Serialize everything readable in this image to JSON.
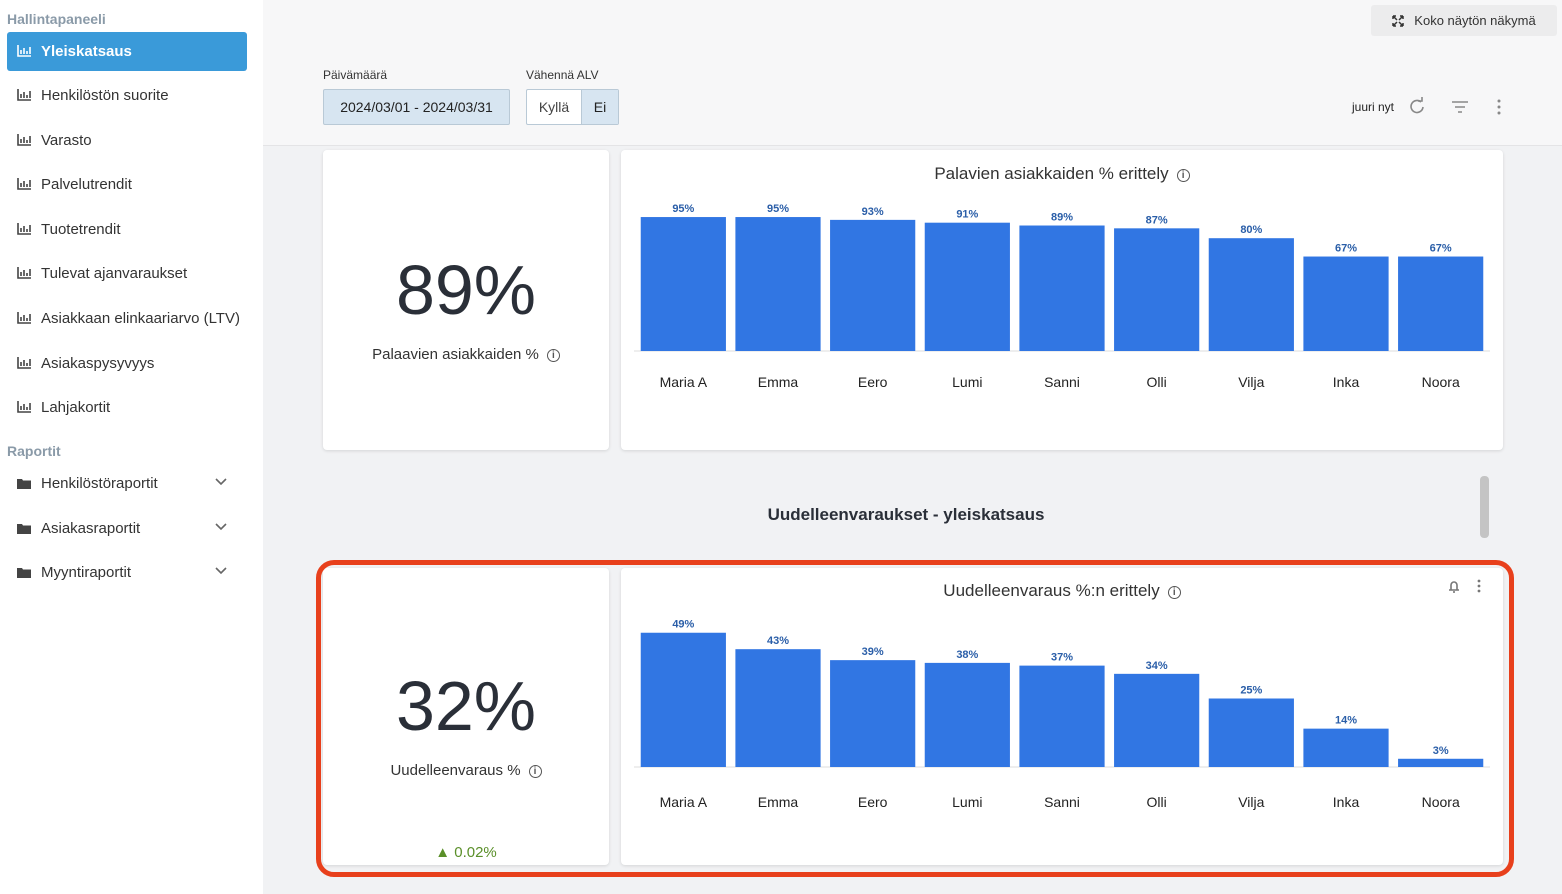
{
  "sidebar": {
    "heading": "Hallintapaneeli",
    "items": [
      "Yleiskatsaus",
      "Henkilöstön suorite",
      "Varasto",
      "Palvelutrendit",
      "Tuotetrendit",
      "Tulevat ajanvaraukset",
      "Asiakkaan elinkaariarvo (LTV)",
      "Asiakaspysyvyys",
      "Lahjakortit"
    ],
    "reports_heading": "Raportit",
    "reports": [
      "Henkilöstöraportit",
      "Asiakasraportit",
      "Myyntiraportit"
    ]
  },
  "toolbar": {
    "fullscreen": "Koko näytön näkymä",
    "date_label": "Päivämäärä",
    "date_value": "2024/03/01 - 2024/03/31",
    "vat_label": "Vähennä ALV",
    "vat_options": [
      "Kyllä",
      "Ei"
    ],
    "updated": "juuri nyt"
  },
  "kpi1": {
    "value": "89%",
    "label": "Palaavien asiakkaiden %"
  },
  "chart1": {
    "type": "bar",
    "title": "Palavien asiakkaiden % erittely",
    "categories": [
      "Maria A",
      "Emma",
      "Eero",
      "Lumi",
      "Sanni",
      "Olli",
      "Vilja",
      "Inka",
      "Noora"
    ],
    "values": [
      95,
      95,
      93,
      91,
      89,
      87,
      80,
      67,
      67
    ],
    "value_labels": [
      "95%",
      "95%",
      "93%",
      "91%",
      "89%",
      "87%",
      "80%",
      "67%",
      "67%"
    ],
    "color": "#3176e3",
    "ylim": [
      0,
      100
    ]
  },
  "section_title": "Uudelleenvaraukset - yleiskatsaus",
  "kpi2": {
    "value": "32%",
    "label": "Uudelleenvaraus %",
    "change": "▲ 0.02%"
  },
  "chart2": {
    "type": "bar",
    "title": "Uudelleenvaraus %:n erittely",
    "categories": [
      "Maria A",
      "Emma",
      "Eero",
      "Lumi",
      "Sanni",
      "Olli",
      "Vilja",
      "Inka",
      "Noora"
    ],
    "values": [
      49,
      43,
      39,
      38,
      37,
      34,
      25,
      14,
      3
    ],
    "value_labels": [
      "49%",
      "43%",
      "39%",
      "38%",
      "37%",
      "34%",
      "25%",
      "14%",
      "3%"
    ],
    "color": "#3176e3",
    "ylim": [
      0,
      50
    ]
  }
}
